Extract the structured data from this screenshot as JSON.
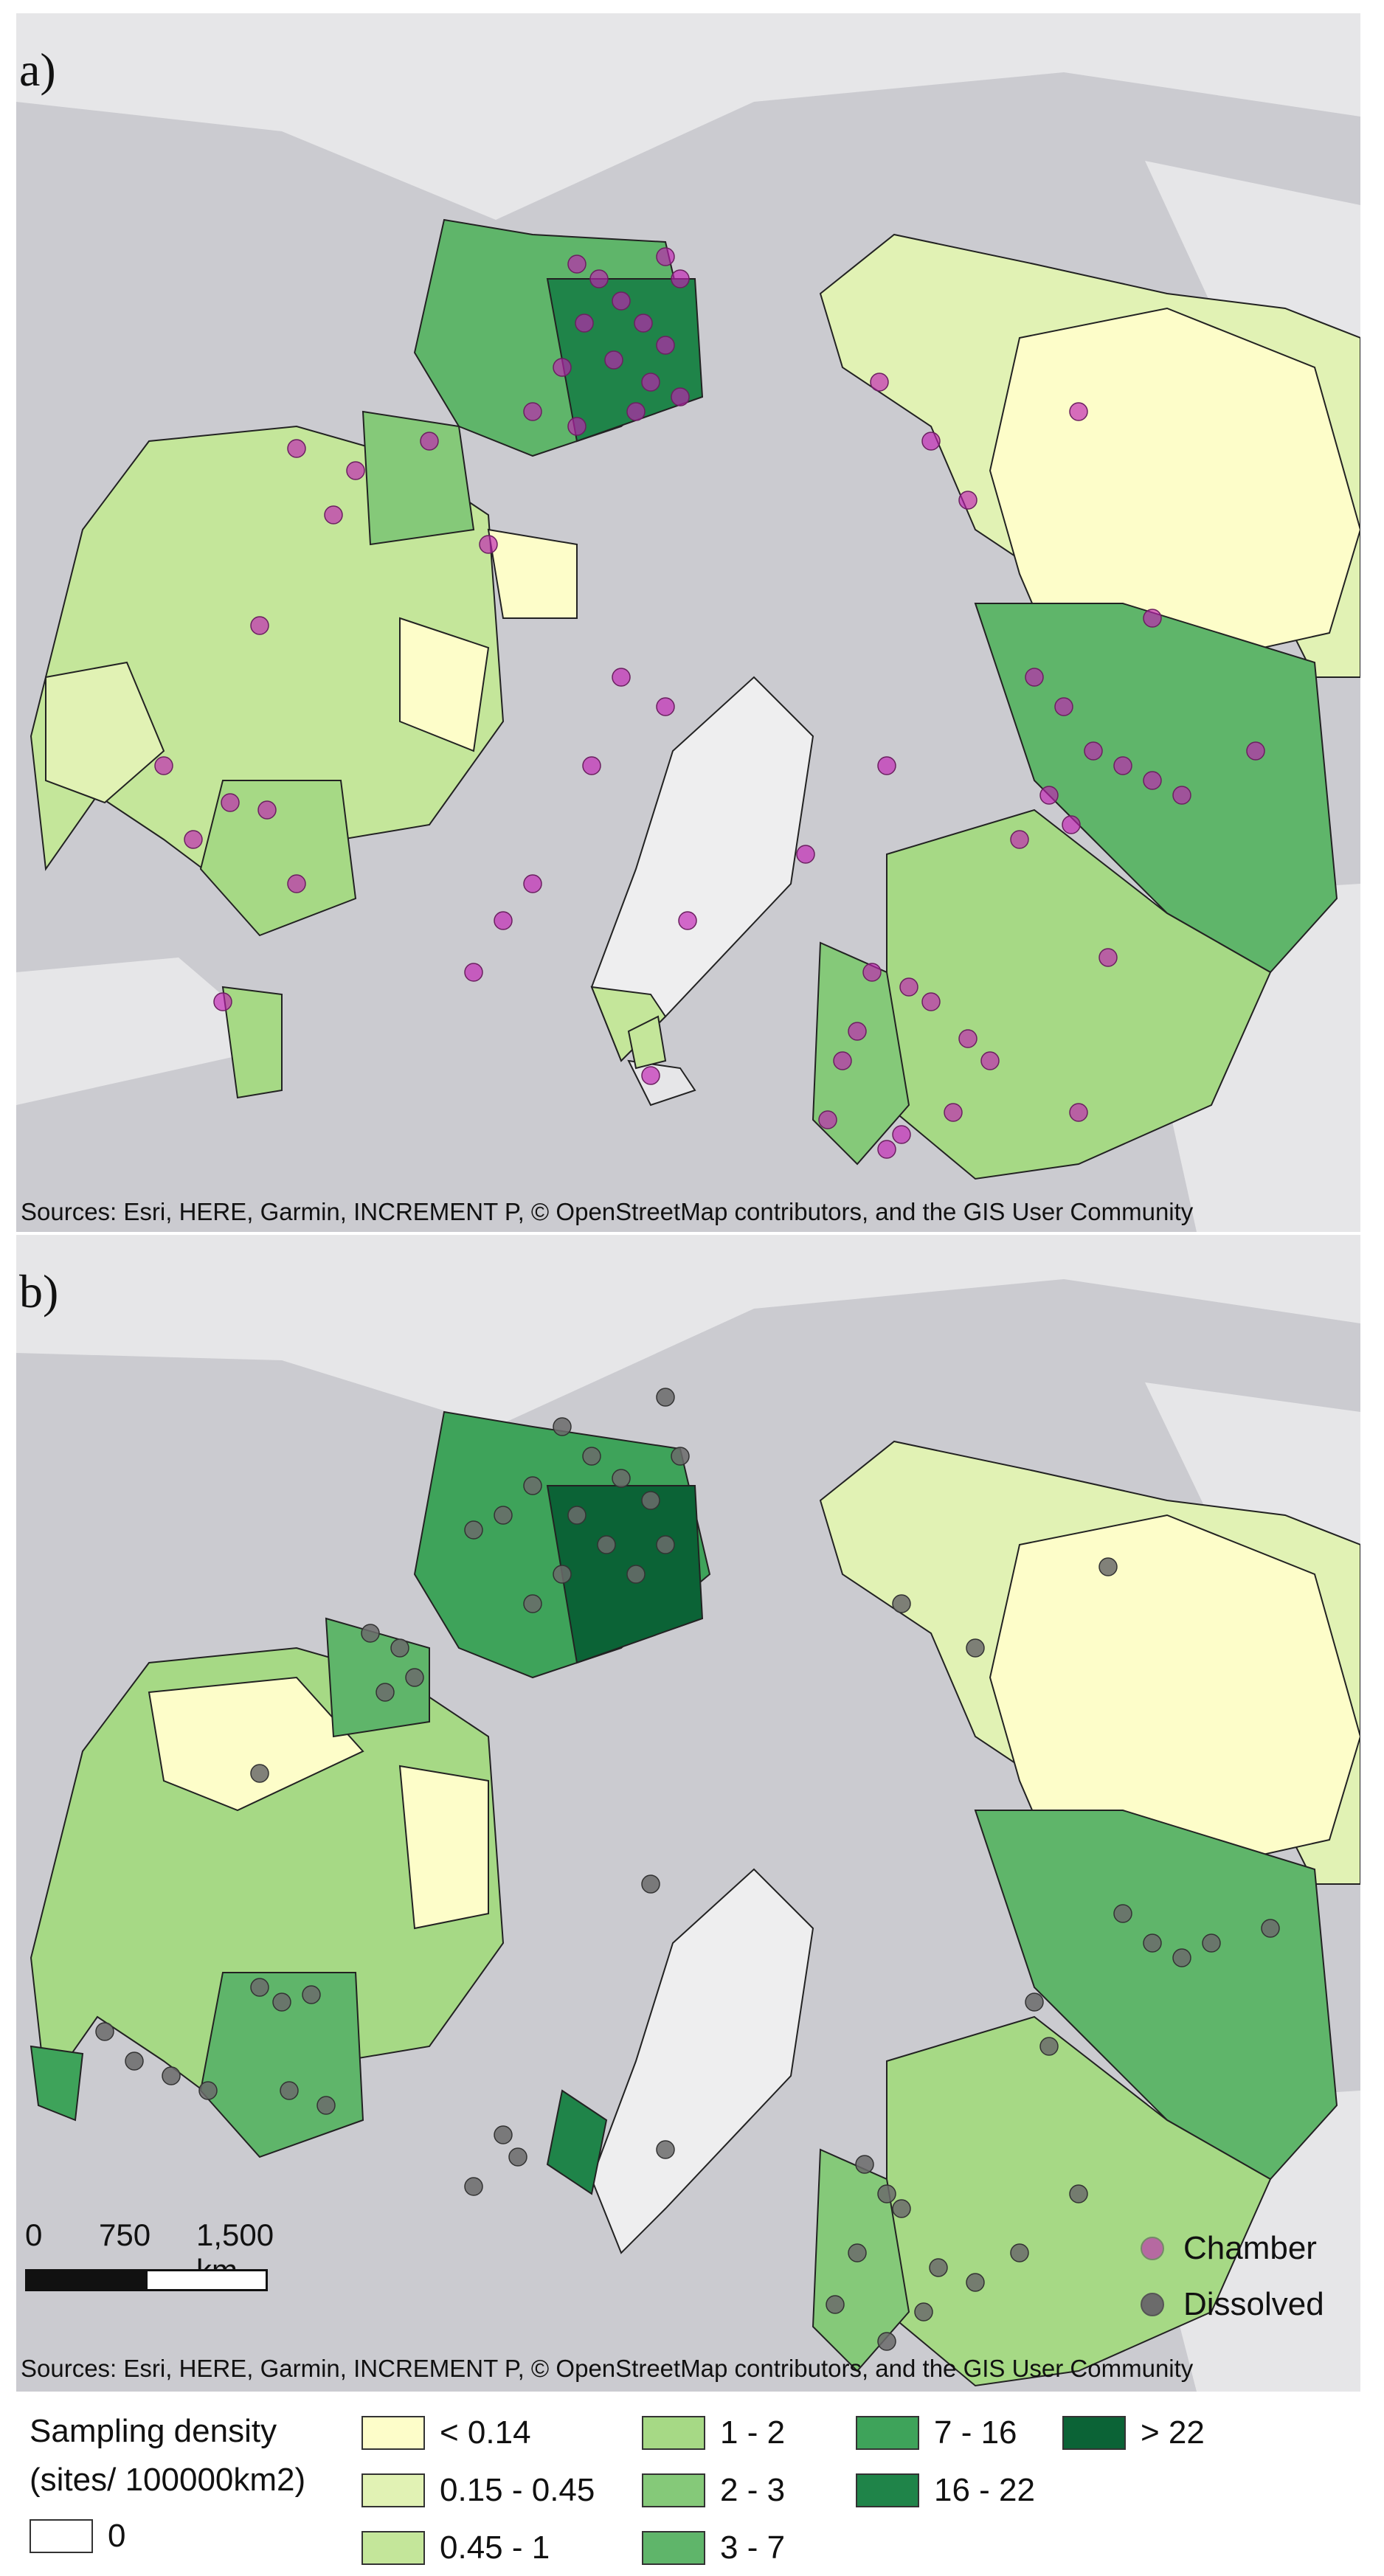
{
  "panels": [
    {
      "label": "a)",
      "sources": "Sources: Esri, HERE, Garmin, INCREMENT P, © OpenStreetMap contributors, and the GIS User Community"
    },
    {
      "label": "b)",
      "sources": "Sources: Esri, HERE, Garmin, INCREMENT P, © OpenStreetMap contributors, and the GIS User Community"
    }
  ],
  "scale_bar": {
    "labels": [
      "0",
      "750",
      "1,500 km"
    ]
  },
  "point_legend": {
    "items": [
      {
        "label": "Chamber",
        "color": "#c21fb4"
      },
      {
        "label": "Dissolved",
        "color": "#6b6b6b"
      }
    ]
  },
  "density_legend": {
    "title_line1": "Sampling density",
    "title_line2": "(sites/ 100000km2)",
    "zero": {
      "label": "0",
      "color": "#ffffff"
    },
    "classes": [
      {
        "label": "< 0.14",
        "color": "#fdfdc9"
      },
      {
        "label": "0.15 - 0.45",
        "color": "#e1f2b4"
      },
      {
        "label": "0.45 - 1",
        "color": "#c4e69a"
      },
      {
        "label": "1 - 2",
        "color": "#a6d985"
      },
      {
        "label": "2 - 3",
        "color": "#85c979"
      },
      {
        "label": "3 - 7",
        "color": "#5fb56a"
      },
      {
        "label": "7 - 16",
        "color": "#3ea35a"
      },
      {
        "label": "16 - 22",
        "color": "#1f8449"
      },
      {
        "label": "> 22",
        "color": "#0b6336"
      }
    ]
  },
  "colors": {
    "ocean": "#cbcbd0",
    "land": "#e6e6e8",
    "outline": "#222222"
  }
}
